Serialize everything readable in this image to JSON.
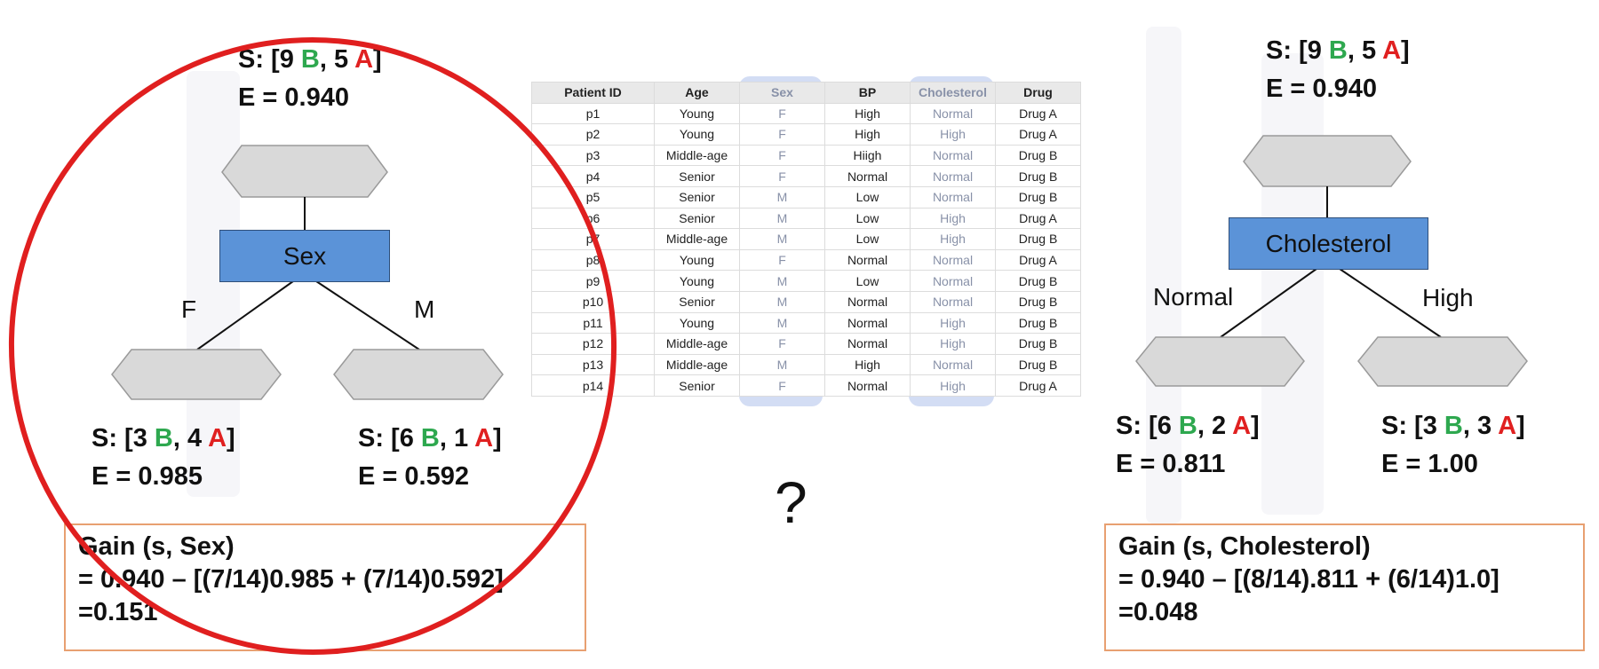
{
  "root_left": {
    "stat": {
      "prefix": "S: [9 ",
      "b": "B",
      "mid": ", 5 ",
      "a": "A",
      "suffix": "]"
    },
    "entropy": "E = 0.940"
  },
  "root_right": {
    "stat": {
      "prefix": "S: [9 ",
      "b": "B",
      "mid": ", 5 ",
      "a": "A",
      "suffix": "]"
    },
    "entropy": "E = 0.940"
  },
  "sex_node": {
    "label": "Sex"
  },
  "cholesterol_node": {
    "label": "Cholesterol"
  },
  "sex_branches": {
    "left": "F",
    "right": "M"
  },
  "chol_branches": {
    "left": "Normal",
    "right": "High"
  },
  "sex_children": [
    {
      "stat": {
        "prefix": "S: [3 ",
        "b": "B",
        "mid": ", 4 ",
        "a": "A",
        "suffix": "]"
      },
      "entropy": "E = 0.985"
    },
    {
      "stat": {
        "prefix": "S: [6 ",
        "b": "B",
        "mid": ", 1 ",
        "a": "A",
        "suffix": "]"
      },
      "entropy": "E = 0.592"
    }
  ],
  "chol_children": [
    {
      "stat": {
        "prefix": "S: [6 ",
        "b": "B",
        "mid": ", 2 ",
        "a": "A",
        "suffix": "]"
      },
      "entropy": "E = 0.811"
    },
    {
      "stat": {
        "prefix": "S: [3 ",
        "b": "B",
        "mid": ", 3 ",
        "a": "A",
        "suffix": "]"
      },
      "entropy": "E = 1.00"
    }
  ],
  "gain_sex": {
    "line1": "Gain (s, Sex)",
    "line2": "= 0.940 – [(7/14)0.985 + (7/14)0.592]",
    "line3": "=0.151"
  },
  "gain_chol": {
    "line1": "Gain (s, Cholesterol)",
    "line2": "= 0.940 – [(8/14).811 + (6/14)1.0]",
    "line3": "=0.048"
  },
  "question_mark": "?",
  "table": {
    "headers": [
      "Patient ID",
      "Age",
      "Sex",
      "BP",
      "Cholesterol",
      "Drug"
    ],
    "rows": [
      [
        "p1",
        "Young",
        "F",
        "High",
        "Normal",
        "Drug A"
      ],
      [
        "p2",
        "Young",
        "F",
        "High",
        "High",
        "Drug A"
      ],
      [
        "p3",
        "Middle-age",
        "F",
        "Hiigh",
        "Normal",
        "Drug B"
      ],
      [
        "p4",
        "Senior",
        "F",
        "Normal",
        "Normal",
        "Drug B"
      ],
      [
        "p5",
        "Senior",
        "M",
        "Low",
        "Normal",
        "Drug B"
      ],
      [
        "p6",
        "Senior",
        "M",
        "Low",
        "High",
        "Drug A"
      ],
      [
        "p7",
        "Middle-age",
        "M",
        "Low",
        "High",
        "Drug B"
      ],
      [
        "p8",
        "Young",
        "F",
        "Normal",
        "Normal",
        "Drug A"
      ],
      [
        "p9",
        "Young",
        "M",
        "Low",
        "Normal",
        "Drug B"
      ],
      [
        "p10",
        "Senior",
        "M",
        "Normal",
        "Normal",
        "Drug B"
      ],
      [
        "p11",
        "Young",
        "M",
        "Normal",
        "High",
        "Drug B"
      ],
      [
        "p12",
        "Middle-age",
        "F",
        "Normal",
        "High",
        "Drug B"
      ],
      [
        "p13",
        "Middle-age",
        "M",
        "High",
        "Normal",
        "Drug B"
      ],
      [
        "p14",
        "Senior",
        "F",
        "Normal",
        "High",
        "Drug A"
      ]
    ]
  },
  "colors": {
    "class_b": "#2ea84f",
    "class_a": "#e02020",
    "node_fill": "#5b93d8",
    "leaf_fill": "#d9d9d9",
    "gain_border": "#e8a071",
    "circle": "#e01f1f",
    "column_highlight": "#8ca5e1"
  }
}
